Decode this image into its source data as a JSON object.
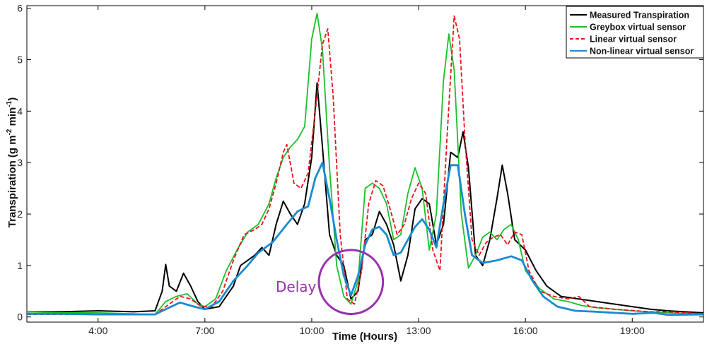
{
  "chart_data": {
    "type": "line",
    "xlabel": "Time (Hours)",
    "ylabel_main": "Transpiration (g m",
    "ylabel_sup1": "-2",
    "ylabel_mid": " min",
    "ylabel_sup2": "-1",
    "ylabel_end": ")",
    "xlim": [
      2.0,
      21.0
    ],
    "ylim": [
      -0.1,
      6.05
    ],
    "xticks": [
      4,
      7,
      10,
      13,
      16,
      19
    ],
    "xtick_labels": [
      "4:00",
      "7:00",
      "10:00",
      "13:00",
      "16:00",
      "19:00"
    ],
    "yticks": [
      0,
      1,
      2,
      3,
      4,
      5,
      6
    ],
    "ytick_labels": [
      "0",
      "1",
      "2",
      "3",
      "4",
      "5",
      "6"
    ],
    "grid": false,
    "legend_position": "top-right",
    "annotation": {
      "text": "Delay",
      "color": "#9b2fae",
      "circle_center": [
        11.1,
        0.68
      ],
      "circle_radius_hours": 0.9
    },
    "series": [
      {
        "name": "Measured Transpiration",
        "color": "#000000",
        "style": "solid",
        "points": [
          [
            2.0,
            0.1
          ],
          [
            3.0,
            0.1
          ],
          [
            4.0,
            0.12
          ],
          [
            5.0,
            0.1
          ],
          [
            5.6,
            0.12
          ],
          [
            5.8,
            0.5
          ],
          [
            5.9,
            1.02
          ],
          [
            6.0,
            0.6
          ],
          [
            6.2,
            0.5
          ],
          [
            6.4,
            0.85
          ],
          [
            6.6,
            0.6
          ],
          [
            6.8,
            0.3
          ],
          [
            7.0,
            0.15
          ],
          [
            7.4,
            0.2
          ],
          [
            7.8,
            0.6
          ],
          [
            8.0,
            1.0
          ],
          [
            8.4,
            1.2
          ],
          [
            8.6,
            1.35
          ],
          [
            8.8,
            1.2
          ],
          [
            9.0,
            1.8
          ],
          [
            9.2,
            2.25
          ],
          [
            9.4,
            2.0
          ],
          [
            9.6,
            1.8
          ],
          [
            9.8,
            2.2
          ],
          [
            10.0,
            3.1
          ],
          [
            10.15,
            4.55
          ],
          [
            10.3,
            3.3
          ],
          [
            10.5,
            1.6
          ],
          [
            10.7,
            1.2
          ],
          [
            10.9,
            1.0
          ],
          [
            11.1,
            0.35
          ],
          [
            11.3,
            0.5
          ],
          [
            11.5,
            1.5
          ],
          [
            11.7,
            1.6
          ],
          [
            11.9,
            2.05
          ],
          [
            12.1,
            1.8
          ],
          [
            12.3,
            1.4
          ],
          [
            12.5,
            0.7
          ],
          [
            12.7,
            1.2
          ],
          [
            12.9,
            2.1
          ],
          [
            13.1,
            2.3
          ],
          [
            13.3,
            2.2
          ],
          [
            13.5,
            1.4
          ],
          [
            13.7,
            1.8
          ],
          [
            13.9,
            3.2
          ],
          [
            14.1,
            3.1
          ],
          [
            14.25,
            3.6
          ],
          [
            14.4,
            2.9
          ],
          [
            14.6,
            1.2
          ],
          [
            14.8,
            1.0
          ],
          [
            15.0,
            1.5
          ],
          [
            15.2,
            2.3
          ],
          [
            15.35,
            2.95
          ],
          [
            15.5,
            2.4
          ],
          [
            15.7,
            1.5
          ],
          [
            16.0,
            1.3
          ],
          [
            16.3,
            0.9
          ],
          [
            16.6,
            0.6
          ],
          [
            17.0,
            0.4
          ],
          [
            17.5,
            0.35
          ],
          [
            18.0,
            0.3
          ],
          [
            18.5,
            0.25
          ],
          [
            19.0,
            0.2
          ],
          [
            19.5,
            0.15
          ],
          [
            20.0,
            0.12
          ],
          [
            21.0,
            0.08
          ]
        ]
      },
      {
        "name": "Greybox virtual sensor",
        "color": "#1bbf2a",
        "style": "solid",
        "points": [
          [
            2.0,
            0.1
          ],
          [
            3.0,
            0.08
          ],
          [
            4.0,
            0.08
          ],
          [
            5.0,
            0.06
          ],
          [
            5.6,
            0.05
          ],
          [
            5.9,
            0.3
          ],
          [
            6.2,
            0.4
          ],
          [
            6.5,
            0.45
          ],
          [
            6.8,
            0.25
          ],
          [
            7.0,
            0.2
          ],
          [
            7.3,
            0.35
          ],
          [
            7.6,
            0.9
          ],
          [
            7.9,
            1.3
          ],
          [
            8.2,
            1.65
          ],
          [
            8.5,
            1.8
          ],
          [
            8.8,
            2.2
          ],
          [
            9.0,
            2.7
          ],
          [
            9.2,
            3.1
          ],
          [
            9.4,
            3.3
          ],
          [
            9.6,
            3.45
          ],
          [
            9.8,
            3.7
          ],
          [
            10.0,
            5.4
          ],
          [
            10.15,
            5.9
          ],
          [
            10.3,
            5.2
          ],
          [
            10.5,
            2.9
          ],
          [
            10.7,
            1.0
          ],
          [
            10.9,
            0.4
          ],
          [
            11.1,
            0.25
          ],
          [
            11.3,
            0.7
          ],
          [
            11.5,
            2.5
          ],
          [
            11.7,
            2.6
          ],
          [
            11.9,
            2.5
          ],
          [
            12.1,
            2.2
          ],
          [
            12.3,
            1.5
          ],
          [
            12.5,
            1.6
          ],
          [
            12.7,
            2.4
          ],
          [
            12.9,
            2.9
          ],
          [
            13.1,
            2.5
          ],
          [
            13.3,
            1.3
          ],
          [
            13.5,
            2.0
          ],
          [
            13.7,
            4.6
          ],
          [
            13.85,
            5.5
          ],
          [
            14.0,
            4.8
          ],
          [
            14.2,
            2.0
          ],
          [
            14.4,
            0.95
          ],
          [
            14.6,
            1.2
          ],
          [
            14.8,
            1.55
          ],
          [
            15.0,
            1.65
          ],
          [
            15.2,
            1.5
          ],
          [
            15.4,
            1.7
          ],
          [
            15.6,
            1.8
          ],
          [
            15.8,
            1.5
          ],
          [
            16.0,
            0.9
          ],
          [
            16.4,
            0.55
          ],
          [
            16.8,
            0.35
          ],
          [
            17.2,
            0.3
          ],
          [
            17.6,
            0.22
          ],
          [
            18.0,
            0.18
          ],
          [
            19.0,
            0.12
          ],
          [
            20.0,
            0.08
          ],
          [
            21.0,
            0.06
          ]
        ]
      },
      {
        "name": "Linear virtual sensor",
        "color": "#e8131b",
        "style": "dashed",
        "points": [
          [
            2.0,
            0.05
          ],
          [
            3.0,
            0.05
          ],
          [
            4.0,
            0.05
          ],
          [
            5.0,
            0.05
          ],
          [
            5.6,
            0.05
          ],
          [
            6.0,
            0.25
          ],
          [
            6.3,
            0.4
          ],
          [
            6.6,
            0.35
          ],
          [
            6.9,
            0.2
          ],
          [
            7.2,
            0.2
          ],
          [
            7.5,
            0.5
          ],
          [
            7.8,
            1.1
          ],
          [
            8.1,
            1.6
          ],
          [
            8.4,
            1.7
          ],
          [
            8.6,
            1.8
          ],
          [
            8.8,
            2.1
          ],
          [
            9.0,
            2.6
          ],
          [
            9.2,
            3.2
          ],
          [
            9.3,
            3.35
          ],
          [
            9.5,
            2.6
          ],
          [
            9.7,
            2.5
          ],
          [
            9.9,
            2.8
          ],
          [
            10.1,
            4.0
          ],
          [
            10.3,
            5.3
          ],
          [
            10.45,
            5.6
          ],
          [
            10.6,
            4.3
          ],
          [
            10.8,
            1.6
          ],
          [
            11.0,
            0.35
          ],
          [
            11.2,
            0.25
          ],
          [
            11.4,
            0.9
          ],
          [
            11.6,
            2.2
          ],
          [
            11.8,
            2.65
          ],
          [
            12.0,
            2.55
          ],
          [
            12.2,
            2.1
          ],
          [
            12.4,
            1.6
          ],
          [
            12.6,
            1.8
          ],
          [
            12.8,
            2.3
          ],
          [
            13.0,
            2.6
          ],
          [
            13.2,
            2.4
          ],
          [
            13.4,
            1.3
          ],
          [
            13.6,
            0.9
          ],
          [
            13.8,
            3.5
          ],
          [
            14.0,
            5.85
          ],
          [
            14.15,
            5.4
          ],
          [
            14.3,
            3.5
          ],
          [
            14.5,
            1.5
          ],
          [
            14.7,
            1.2
          ],
          [
            14.9,
            1.45
          ],
          [
            15.1,
            1.55
          ],
          [
            15.3,
            1.6
          ],
          [
            15.5,
            1.4
          ],
          [
            15.7,
            1.65
          ],
          [
            15.9,
            1.6
          ],
          [
            16.1,
            0.9
          ],
          [
            16.4,
            0.5
          ],
          [
            16.8,
            0.4
          ],
          [
            17.2,
            0.35
          ],
          [
            17.5,
            0.4
          ],
          [
            17.8,
            0.2
          ],
          [
            18.5,
            0.15
          ],
          [
            19.5,
            0.1
          ],
          [
            20.0,
            0.1
          ],
          [
            21.0,
            0.06
          ]
        ]
      },
      {
        "name": "Non-linear virtual sensor",
        "color": "#1a8ad1",
        "style": "solid",
        "points": [
          [
            2.0,
            0.06
          ],
          [
            3.0,
            0.06
          ],
          [
            4.0,
            0.05
          ],
          [
            5.0,
            0.05
          ],
          [
            5.6,
            0.05
          ],
          [
            5.9,
            0.15
          ],
          [
            6.3,
            0.28
          ],
          [
            6.7,
            0.2
          ],
          [
            7.0,
            0.15
          ],
          [
            7.4,
            0.3
          ],
          [
            7.8,
            0.7
          ],
          [
            8.2,
            1.0
          ],
          [
            8.5,
            1.25
          ],
          [
            8.9,
            1.45
          ],
          [
            9.3,
            1.8
          ],
          [
            9.6,
            2.05
          ],
          [
            9.9,
            2.15
          ],
          [
            10.1,
            2.7
          ],
          [
            10.3,
            3.0
          ],
          [
            10.5,
            2.3
          ],
          [
            10.7,
            1.5
          ],
          [
            10.9,
            0.8
          ],
          [
            11.1,
            0.42
          ],
          [
            11.3,
            0.8
          ],
          [
            11.5,
            1.4
          ],
          [
            11.7,
            1.7
          ],
          [
            11.9,
            1.75
          ],
          [
            12.1,
            1.6
          ],
          [
            12.3,
            1.2
          ],
          [
            12.5,
            1.25
          ],
          [
            12.7,
            1.5
          ],
          [
            12.9,
            1.75
          ],
          [
            13.1,
            1.9
          ],
          [
            13.3,
            1.7
          ],
          [
            13.5,
            1.35
          ],
          [
            13.7,
            2.2
          ],
          [
            13.9,
            2.95
          ],
          [
            14.1,
            2.95
          ],
          [
            14.3,
            2.0
          ],
          [
            14.5,
            1.2
          ],
          [
            14.8,
            1.05
          ],
          [
            15.2,
            1.1
          ],
          [
            15.6,
            1.18
          ],
          [
            15.9,
            1.1
          ],
          [
            16.2,
            0.7
          ],
          [
            16.5,
            0.4
          ],
          [
            16.9,
            0.2
          ],
          [
            17.4,
            0.12
          ],
          [
            18.0,
            0.1
          ],
          [
            19.0,
            0.06
          ],
          [
            19.6,
            0.08
          ],
          [
            20.0,
            0.04
          ],
          [
            21.0,
            0.05
          ]
        ]
      }
    ]
  }
}
